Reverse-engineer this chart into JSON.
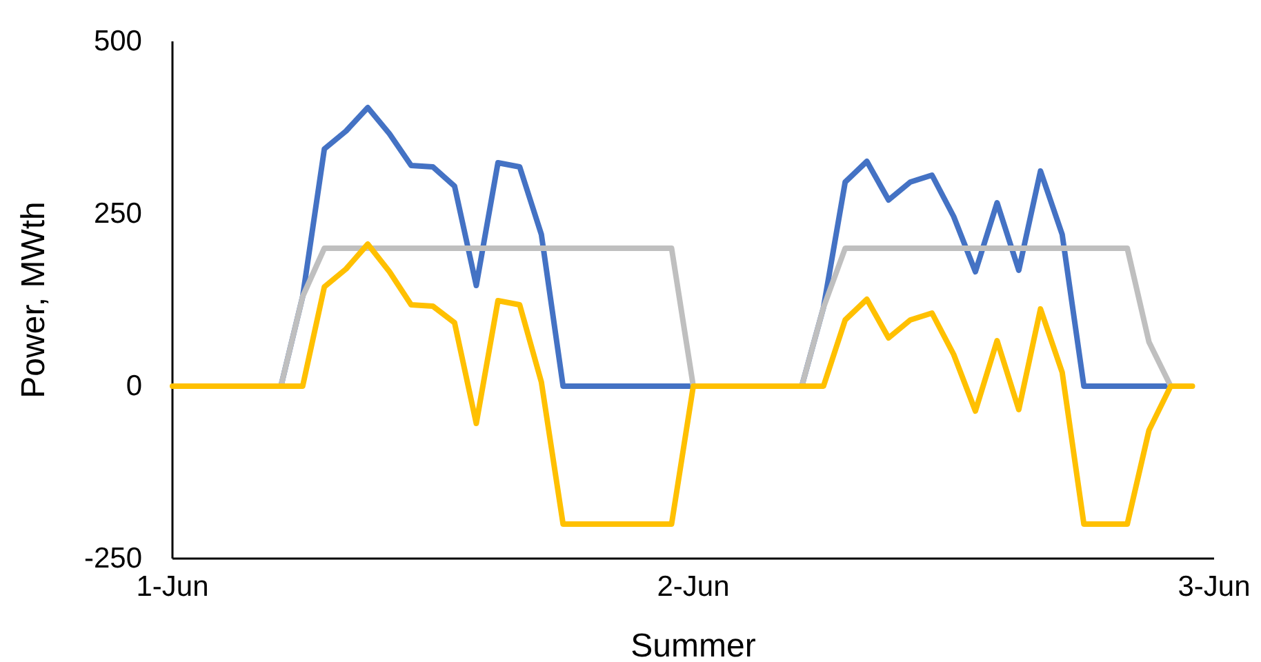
{
  "chart_data": {
    "type": "line",
    "xlabel": "Summer",
    "ylabel": "Power, MWth",
    "categories": [
      "1-Jun",
      null,
      null,
      null,
      null,
      null,
      null,
      null,
      null,
      null,
      null,
      null,
      null,
      null,
      null,
      null,
      null,
      null,
      null,
      null,
      null,
      null,
      null,
      null,
      "2-Jun",
      null,
      null,
      null,
      null,
      null,
      null,
      null,
      null,
      null,
      null,
      null,
      null,
      null,
      null,
      null,
      null,
      null,
      null,
      null,
      null,
      null,
      null,
      null,
      "3-Jun"
    ],
    "ylim": [
      -250,
      500
    ],
    "yticks": [
      -250,
      0,
      250,
      500
    ],
    "line_style": "solid",
    "marker": "none",
    "series": [
      {
        "color": "#4472c4",
        "values": [
          null,
          null,
          null,
          null,
          null,
          0,
          130,
          344,
          370,
          404,
          366,
          320,
          318,
          290,
          146,
          324,
          318,
          220,
          0,
          0,
          0,
          0,
          0,
          0,
          0,
          null,
          null,
          null,
          null,
          0,
          114,
          296,
          326,
          270,
          296,
          306,
          246,
          166,
          266,
          168,
          312,
          220,
          0,
          0,
          0,
          0,
          0,
          null,
          null
        ]
      },
      {
        "color": "#bfbfbf",
        "values": [
          null,
          null,
          null,
          null,
          null,
          0,
          130,
          200,
          200,
          200,
          200,
          200,
          200,
          200,
          200,
          200,
          200,
          200,
          200,
          200,
          200,
          200,
          200,
          200,
          0,
          null,
          null,
          null,
          null,
          0,
          114,
          200,
          200,
          200,
          200,
          200,
          200,
          200,
          200,
          200,
          200,
          200,
          200,
          200,
          200,
          64,
          0,
          null,
          null
        ]
      },
      {
        "color": "#ffc000",
        "values": [
          0,
          0,
          0,
          0,
          0,
          0,
          0,
          144,
          170,
          206,
          166,
          118,
          116,
          92,
          -54,
          124,
          118,
          6,
          -200,
          -200,
          -200,
          -200,
          -200,
          -200,
          0,
          0,
          0,
          0,
          0,
          0,
          0,
          96,
          126,
          70,
          96,
          106,
          46,
          -36,
          66,
          -34,
          112,
          20,
          -200,
          -200,
          -200,
          -64,
          0,
          0,
          null
        ]
      }
    ]
  }
}
